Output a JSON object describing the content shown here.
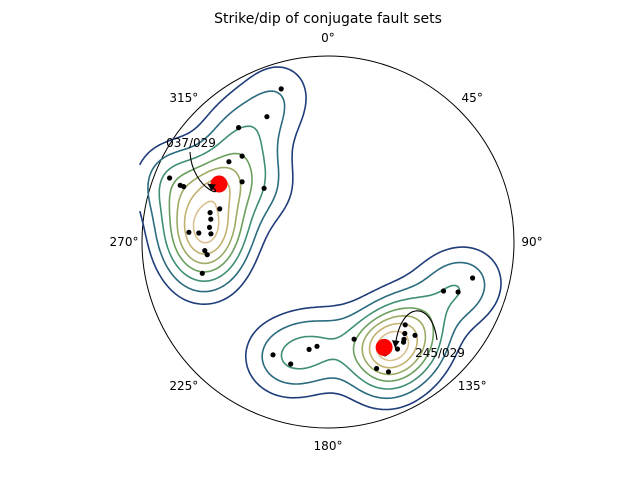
{
  "chart_data": {
    "type": "stereonet",
    "title": "Strike/dip of conjugate fault sets",
    "projection": "equal-area polar stereonet",
    "azimuth_tick_labels": [
      "0°",
      "45°",
      "90°",
      "135°",
      "180°",
      "225°",
      "270°",
      "315°"
    ],
    "azimuth_ticks_deg": [
      0,
      45,
      90,
      135,
      180,
      225,
      270,
      315
    ],
    "contour_colors": [
      "#1f3d7a",
      "#2a6b7f",
      "#3f8f72",
      "#6a9f5e",
      "#9aab63",
      "#c2b16f",
      "#d9c08f"
    ],
    "point_color": "#000000",
    "centroid_color": "#ff0000",
    "clusters": [
      {
        "label": "037/029",
        "centroid": {
          "azimuth": 298,
          "plunge": 34
        },
        "points": [
          {
            "azimuth": 334,
            "plunge": 26
          },
          {
            "azimuth": 343,
            "plunge": 15
          },
          {
            "azimuth": 322,
            "plunge": 23
          },
          {
            "azimuth": 309,
            "plunge": 32
          },
          {
            "azimuth": 291,
            "plunge": 18
          },
          {
            "azimuth": 292,
            "plunge": 9
          },
          {
            "azimuth": 291,
            "plunge": 16
          },
          {
            "azimuth": 315,
            "plunge": 35
          },
          {
            "azimuth": 305,
            "plunge": 43
          },
          {
            "azimuth": 310,
            "plunge": 53
          },
          {
            "azimuth": 284,
            "plunge": 35
          },
          {
            "azimuth": 281,
            "plunge": 36
          },
          {
            "azimuth": 277,
            "plunge": 36
          },
          {
            "azimuth": 274,
            "plunge": 37
          },
          {
            "azimuth": 287,
            "plunge": 39
          },
          {
            "azimuth": 274,
            "plunge": 31
          },
          {
            "azimuth": 266,
            "plunge": 34
          },
          {
            "azimuth": 264,
            "plunge": 35
          },
          {
            "azimuth": 256,
            "plunge": 31
          },
          {
            "azimuth": 274,
            "plunge": 26
          }
        ]
      },
      {
        "label": "245/029",
        "centroid": {
          "azimuth": 152,
          "plunge": 36
        },
        "points": [
          {
            "azimuth": 113,
            "plunge": 33
          },
          {
            "azimuth": 111,
            "plunge": 26
          },
          {
            "azimuth": 104,
            "plunge": 21
          },
          {
            "azimuth": 137,
            "plunge": 39
          },
          {
            "azimuth": 140,
            "plunge": 36
          },
          {
            "azimuth": 142,
            "plunge": 34
          },
          {
            "azimuth": 143,
            "plunge": 33
          },
          {
            "azimuth": 137,
            "plunge": 32
          },
          {
            "azimuth": 147,
            "plunge": 32
          },
          {
            "azimuth": 153,
            "plunge": 33
          },
          {
            "azimuth": 165,
            "plunge": 45
          },
          {
            "azimuth": 186,
            "plunge": 43
          },
          {
            "azimuth": 190,
            "plunge": 41
          },
          {
            "azimuth": 197,
            "plunge": 32
          },
          {
            "azimuth": 206,
            "plunge": 33
          },
          {
            "azimuth": 159,
            "plunge": 28
          },
          {
            "azimuth": 155,
            "plunge": 24
          }
        ]
      }
    ]
  }
}
